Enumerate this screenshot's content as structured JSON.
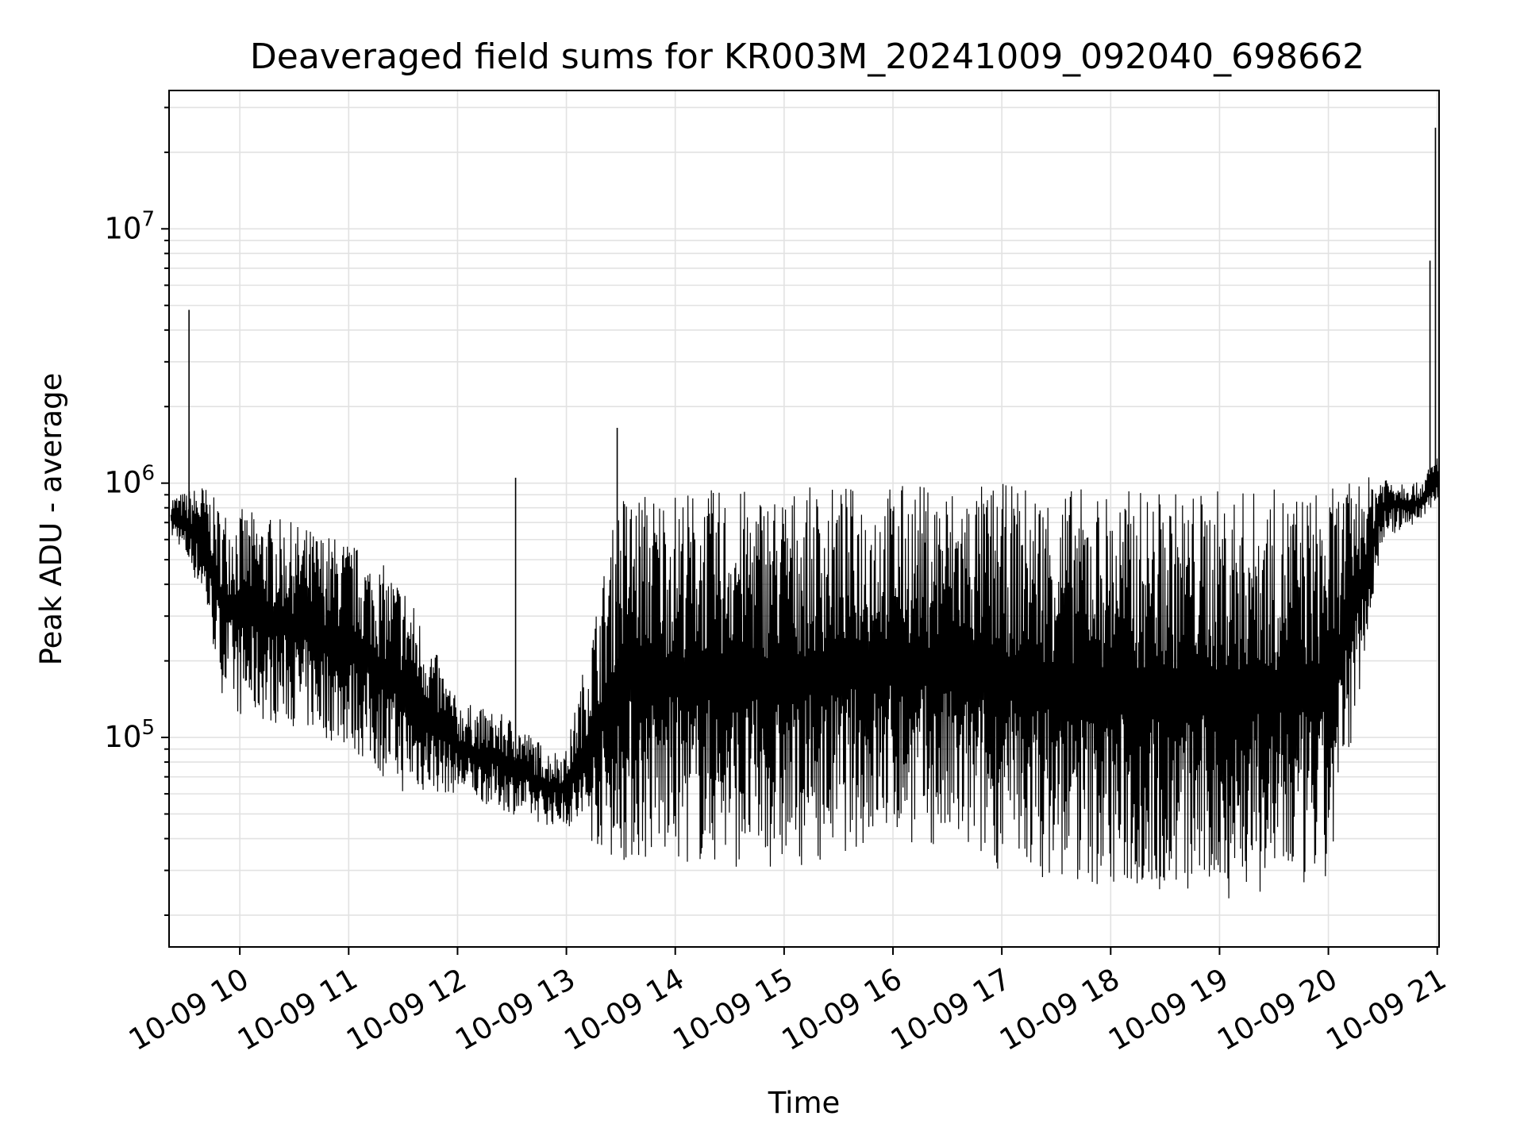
{
  "chart_data": {
    "type": "line",
    "title": "Deaveraged field sums for KR003M_20241009_092040_698662",
    "xlabel": "Time",
    "ylabel": "Peak ADU - average",
    "xscale": "time",
    "yscale": "log",
    "xlim": [
      "2024-10-09 09:21",
      "2024-10-09 21:01"
    ],
    "ylim": [
      15000,
      35000000
    ],
    "grid": true,
    "x_ticks": [
      "10-09 10",
      "10-09 11",
      "10-09 12",
      "10-09 13",
      "10-09 14",
      "10-09 15",
      "10-09 16",
      "10-09 17",
      "10-09 18",
      "10-09 19",
      "10-09 20",
      "10-09 21"
    ],
    "y_ticks": [
      {
        "value": 100000,
        "base": "10",
        "exp": "5"
      },
      {
        "value": 1000000,
        "base": "10",
        "exp": "6"
      },
      {
        "value": 10000000,
        "base": "10",
        "exp": "7"
      }
    ],
    "line_color": "#000000",
    "series": [
      {
        "x": [
          "2024-10-09 09:25",
          "2024-10-09 09:40",
          "2024-10-09 09:50",
          "2024-10-09 10:00",
          "2024-10-09 10:30",
          "2024-10-09 11:00",
          "2024-10-09 11:30",
          "2024-10-09 12:00",
          "2024-10-09 12:30",
          "2024-10-09 12:50",
          "2024-10-09 13:00",
          "2024-10-09 13:30",
          "2024-10-09 14:00",
          "2024-10-09 15:00",
          "2024-10-09 16:00",
          "2024-10-09 17:00",
          "2024-10-09 18:00",
          "2024-10-09 19:00",
          "2024-10-09 20:00",
          "2024-10-09 20:30",
          "2024-10-09 20:50",
          "2024-10-09 21:00"
        ],
        "y_high": [
          900000,
          1000000,
          800000,
          800000,
          700000,
          600000,
          420000,
          140000,
          120000,
          90000,
          90000,
          950000,
          950000,
          950000,
          1000000,
          1000000,
          950000,
          950000,
          950000,
          1100000,
          1000000,
          1300000
        ],
        "y_low": [
          600000,
          350000,
          150000,
          120000,
          110000,
          90000,
          60000,
          60000,
          50000,
          45000,
          45000,
          32000,
          32000,
          30000,
          40000,
          30000,
          25000,
          23000,
          25000,
          600000,
          700000,
          850000
        ]
      }
    ],
    "spikes": [
      {
        "x": "2024-10-09 09:32",
        "y": 4800000
      },
      {
        "x": "2024-10-09 12:32",
        "y": 1050000
      },
      {
        "x": "2024-10-09 13:28",
        "y": 1650000
      },
      {
        "x": "2024-10-09 20:56",
        "y": 7500000
      },
      {
        "x": "2024-10-09 20:59",
        "y": 25000000
      }
    ]
  }
}
